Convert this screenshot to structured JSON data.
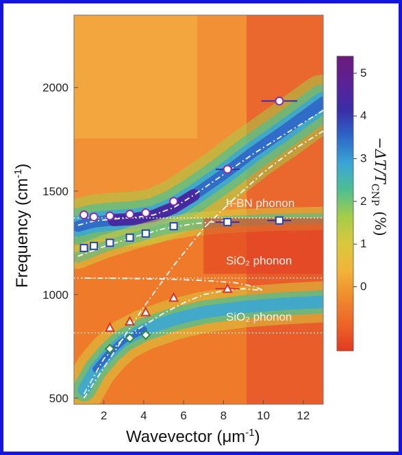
{
  "chart_data": {
    "type": "heatmap",
    "xlabel": "Wavevector (μm⁻¹)",
    "ylabel": "Frequency (cm⁻¹)",
    "xlim": [
      0.5,
      13
    ],
    "ylim": [
      470,
      2350
    ],
    "x_ticks": [
      "2",
      "4",
      "6",
      "8",
      "10",
      "12"
    ],
    "y_ticks": [
      "500",
      "1000",
      "1500",
      "2000"
    ],
    "colorbar": {
      "label": "−ΔT/T_CNP (%)",
      "label_main": "−ΔT/T",
      "label_sub": "CNP",
      "label_unit": "(%)",
      "range": [
        -1.5,
        5.4
      ],
      "ticks": [
        "0",
        "1",
        "2",
        "3",
        "4",
        "5"
      ],
      "colors": [
        "#e23a22",
        "#ee6428",
        "#f08a2c",
        "#f2b43a",
        "#d9c83c",
        "#a6cc48",
        "#4fbf8f",
        "#3aa6d6",
        "#2d66c8",
        "#3a2da8",
        "#5b2296",
        "#6e1a7c"
      ]
    },
    "reference_lines": [
      {
        "label": "h-BN phonon",
        "y": 1370
      },
      {
        "label": "SiO₂ phonon",
        "y": 1080
      },
      {
        "label": "SiO₂ phonon",
        "y": 815
      }
    ],
    "series": [
      {
        "marker": "circle",
        "x": [
          1.0,
          1.5,
          2.3,
          3.3,
          4.1,
          5.5,
          8.2,
          10.8
        ],
        "y": [
          1385,
          1375,
          1380,
          1388,
          1395,
          1450,
          1605,
          1935
        ]
      },
      {
        "marker": "square",
        "x": [
          1.0,
          1.5,
          2.3,
          3.3,
          4.1,
          5.5,
          8.2,
          10.8
        ],
        "y": [
          1225,
          1235,
          1250,
          1275,
          1295,
          1330,
          1350,
          1358
        ]
      },
      {
        "marker": "triangle",
        "x": [
          2.3,
          3.3,
          4.1,
          5.5,
          8.2
        ],
        "y": [
          840,
          870,
          915,
          985,
          1028
        ]
      },
      {
        "marker": "diamond",
        "x": [
          2.3,
          3.3,
          4.1
        ],
        "y": [
          738,
          790,
          805
        ]
      }
    ]
  },
  "annotations": {
    "hbn": "h-BN phonon",
    "sio2_upper": "SiO₂ phonon",
    "sio2_lower": "SiO₂ phonon"
  },
  "labels": {
    "xlabel_main": "Wavevector (μm",
    "xlabel_sup": "-1",
    "xlabel_end": ")",
    "ylabel_main": "Frequency (cm",
    "ylabel_sup": "-1",
    "ylabel_end": ")"
  }
}
